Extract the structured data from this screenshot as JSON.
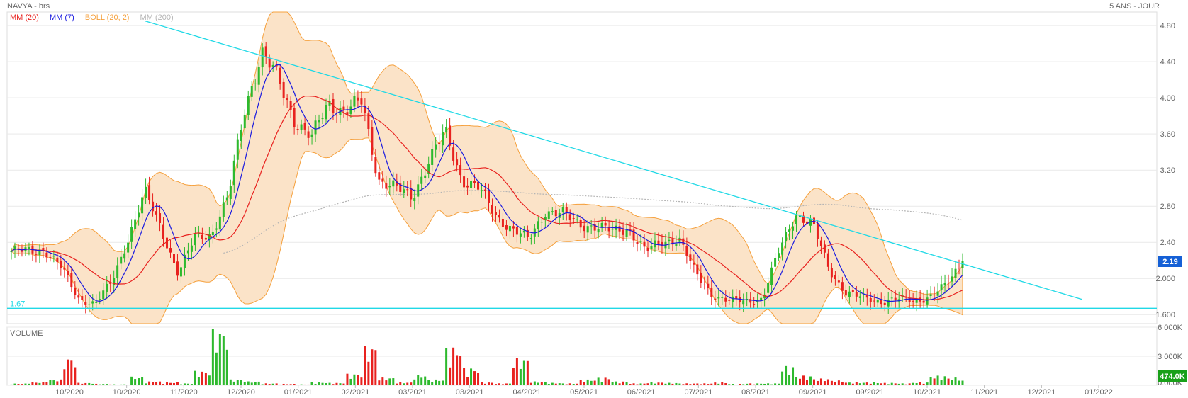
{
  "header": {
    "title": "NAVYA - brs",
    "period": "5 ANS - JOUR"
  },
  "legend": [
    {
      "label": "MM (20)",
      "color": "#e8221f"
    },
    {
      "label": "MM (7)",
      "color": "#1a1adf"
    },
    {
      "label": "BOLL (20; 2)",
      "color": "#f5a03c"
    },
    {
      "label": "MM (200)",
      "color": "#b4b4b4"
    }
  ],
  "volume_panel": {
    "label": "VOLUME",
    "last_volume": "474.0K"
  },
  "price_panel": {
    "last_price": "2.19",
    "support_label": "1.67"
  },
  "colors": {
    "up": "#2db92d",
    "down": "#e8221f",
    "trendline": "#20d9e6",
    "band_fill": "#fbe3c8",
    "band_line": "#f5a03c",
    "last_price_bg": "#1560d6",
    "last_volume_bg": "#19a019"
  },
  "chart_data": {
    "type": "candlestick",
    "title": "NAVYA - brs",
    "price_axis": {
      "ticks": [
        "4.80",
        "4.40",
        "4.00",
        "3.60",
        "3.20",
        "2.80",
        "2.40",
        "2.000",
        "1.600"
      ],
      "ylim": [
        1.5,
        4.95
      ]
    },
    "volume_axis": {
      "ticks": [
        "6 000K",
        "3 000K",
        "0.000K"
      ],
      "ylim": [
        0,
        6000
      ]
    },
    "x_ticks": [
      "10/2020",
      "10/2020",
      "11/2020",
      "12/2020",
      "01/2021",
      "02/2021",
      "03/2021",
      "03/2021",
      "04/2021",
      "05/2021",
      "06/2021",
      "07/2021",
      "08/2021",
      "09/2021",
      "09/2021",
      "10/2021",
      "11/2021",
      "12/2021",
      "01/2022"
    ],
    "close_anchors": [
      2.3,
      2.3,
      2.32,
      2.12,
      1.78,
      1.72,
      1.95,
      2.45,
      2.95,
      2.55,
      2.05,
      2.45,
      2.5,
      2.9,
      3.9,
      4.5,
      4.2,
      3.75,
      3.55,
      3.95,
      3.85,
      3.95,
      3.1,
      3.0,
      2.9,
      3.3,
      3.62,
      3.1,
      3.0,
      2.7,
      2.55,
      2.42,
      2.75,
      2.72,
      2.6,
      2.58,
      2.52,
      2.55,
      2.3,
      2.4,
      2.45,
      2.05,
      1.82,
      1.75,
      1.75,
      1.78,
      2.3,
      2.72,
      2.6,
      2.1,
      1.85,
      1.78,
      1.75,
      1.77,
      1.75,
      1.8,
      1.92,
      2.19
    ],
    "last_price": 2.19,
    "support_level": 1.67,
    "trendline": {
      "from": 4.85,
      "to": 1.77
    },
    "volumes_k": [
      180,
      320,
      600,
      2900,
      250,
      150,
      100,
      900,
      400,
      300,
      200,
      1500,
      5800,
      600,
      400,
      200,
      150,
      100,
      300,
      250,
      1200,
      4100,
      800,
      300,
      1100,
      600,
      4000,
      1800,
      300,
      200,
      2800,
      400,
      250,
      200,
      600,
      800,
      400,
      200,
      300,
      250,
      200,
      200,
      300,
      150,
      200,
      200,
      2000,
      1000,
      700,
      500,
      300,
      300,
      250,
      200,
      300,
      1000,
      800,
      474
    ]
  }
}
